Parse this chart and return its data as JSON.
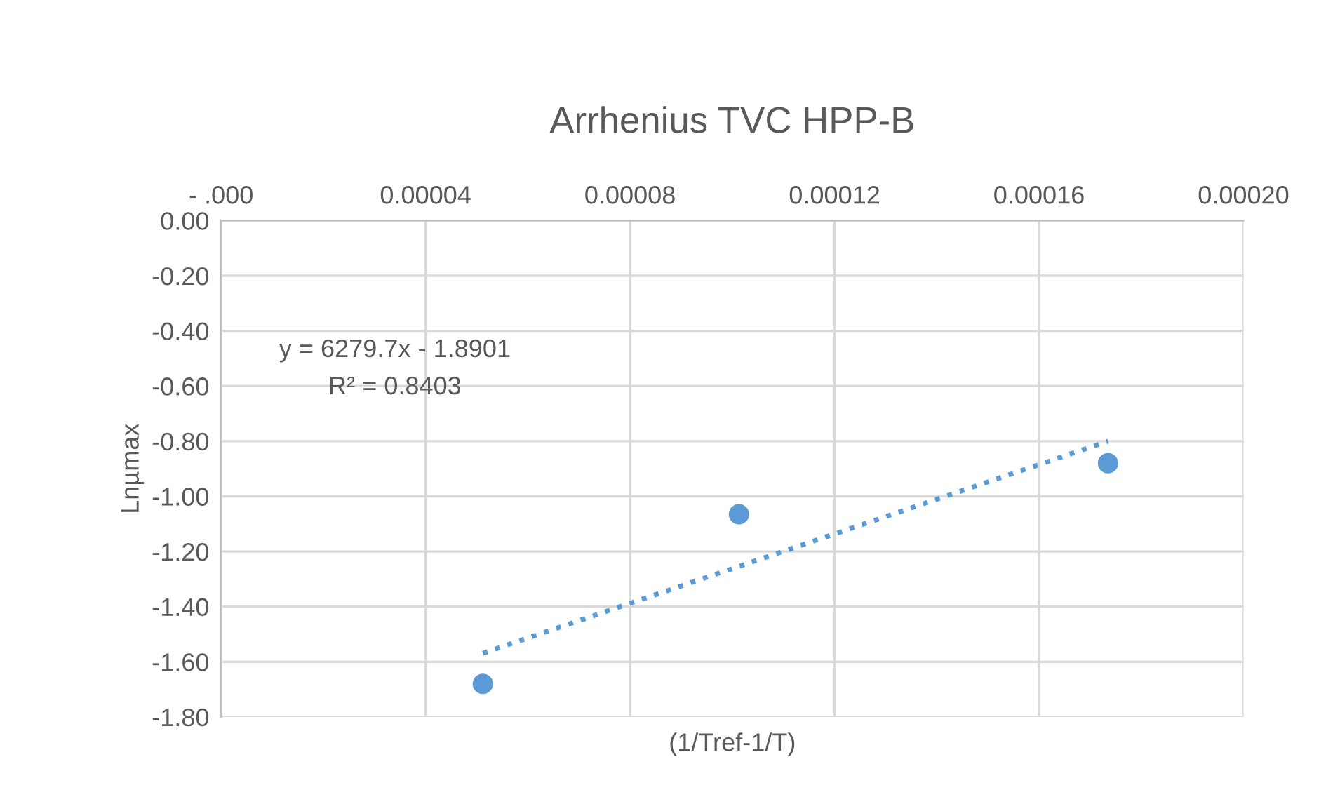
{
  "chart_data": {
    "type": "scatter",
    "title": "Arrhenius TVC HPP-B",
    "xlabel": "(1/Tref-1/T)",
    "ylabel": "Lnµmax",
    "series": [
      {
        "color": "#5b9bd5",
        "marker": "circle",
        "x": [
          5.12e-05,
          0.0001013,
          0.0001735
        ],
        "values": [
          -1.68,
          -1.065,
          -0.88
        ]
      },
      {
        "type": "line",
        "color": "#5b9bd5",
        "line_style": "dotted",
        "marker": "none",
        "x": [
          5.12e-05,
          0.0001735
        ],
        "values": [
          -1.569,
          -0.8
        ]
      }
    ],
    "annotations": [
      "y = 6279.7x - 1.8901",
      "R² = 0.8403"
    ],
    "xlim": [
      0,
      0.0002
    ],
    "ylim": [
      -1.8,
      0
    ],
    "xticks": [
      {
        "value": 0,
        "label": "- .000"
      },
      {
        "value": 4e-05,
        "label": "0.00004"
      },
      {
        "value": 8e-05,
        "label": "0.00008"
      },
      {
        "value": 0.00012,
        "label": "0.00012"
      },
      {
        "value": 0.00016,
        "label": "0.00016"
      },
      {
        "value": 0.0002,
        "label": "0.00020"
      }
    ],
    "yticks": [
      {
        "value": 0,
        "label": "0.00"
      },
      {
        "value": -0.2,
        "label": "-0.20"
      },
      {
        "value": -0.4,
        "label": "-0.40"
      },
      {
        "value": -0.6,
        "label": "-0.60"
      },
      {
        "value": -0.8,
        "label": "-0.80"
      },
      {
        "value": -1.0,
        "label": "-1.00"
      },
      {
        "value": -1.2,
        "label": "-1.20"
      },
      {
        "value": -1.4,
        "label": "-1.40"
      },
      {
        "value": -1.6,
        "label": "-1.60"
      },
      {
        "value": -1.8,
        "label": "-1.80"
      }
    ],
    "grid": true,
    "legend": false
  }
}
